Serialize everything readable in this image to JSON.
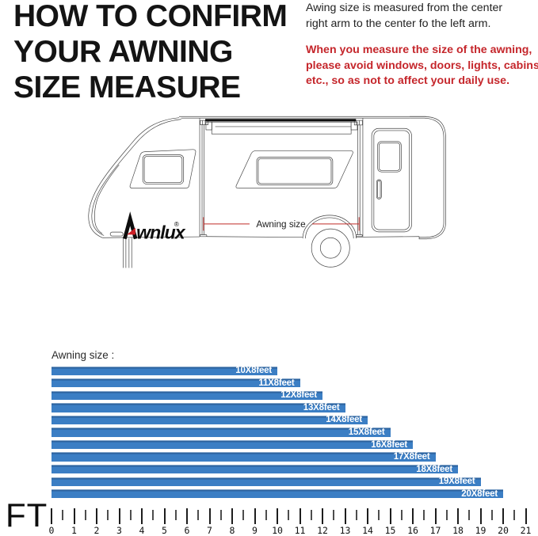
{
  "header": {
    "title_lines": [
      "HOW TO CONFIRM",
      "YOUR AWNING",
      "SIZE MEASURE"
    ],
    "info_lines": [
      "Awing size is measured from the center",
      "right arm to the center fo the left arm."
    ],
    "warning_lines": [
      "When you measure the size of the awning,",
      "please avoid windows, doors, lights, cabins,",
      "etc., so as not to affect your daily use."
    ],
    "warning_color": "#c5262b"
  },
  "diagram": {
    "brand_full": "Awnlux",
    "brand_text": "wnlux",
    "registered_mark": "®",
    "dimension_label": "Awning size",
    "dimension_line_color": "#bf2b28",
    "logo_red": "#cc2027",
    "line_color": "#404040"
  },
  "chart_data": {
    "type": "bar",
    "orientation": "horizontal",
    "title": "Awning size :",
    "categories": [
      "10X8feet",
      "11X8feet",
      "12X8feet",
      "13X8feet",
      "14X8feet",
      "15X8feet",
      "16X8feet",
      "17X8feet",
      "18X8feet",
      "19X8feet",
      "20X8feet"
    ],
    "values": [
      10,
      11,
      12,
      13,
      14,
      15,
      16,
      17,
      18,
      19,
      20
    ],
    "xlabel": "FT",
    "xlim": [
      0,
      21
    ],
    "tick_step": 1,
    "minor_tick_step": 0.5,
    "bar_color": "#3b7ec4",
    "bar_top_edge_color": "#2d639e",
    "bar_label_color": "#ffffff",
    "grid": false,
    "legend": false
  }
}
